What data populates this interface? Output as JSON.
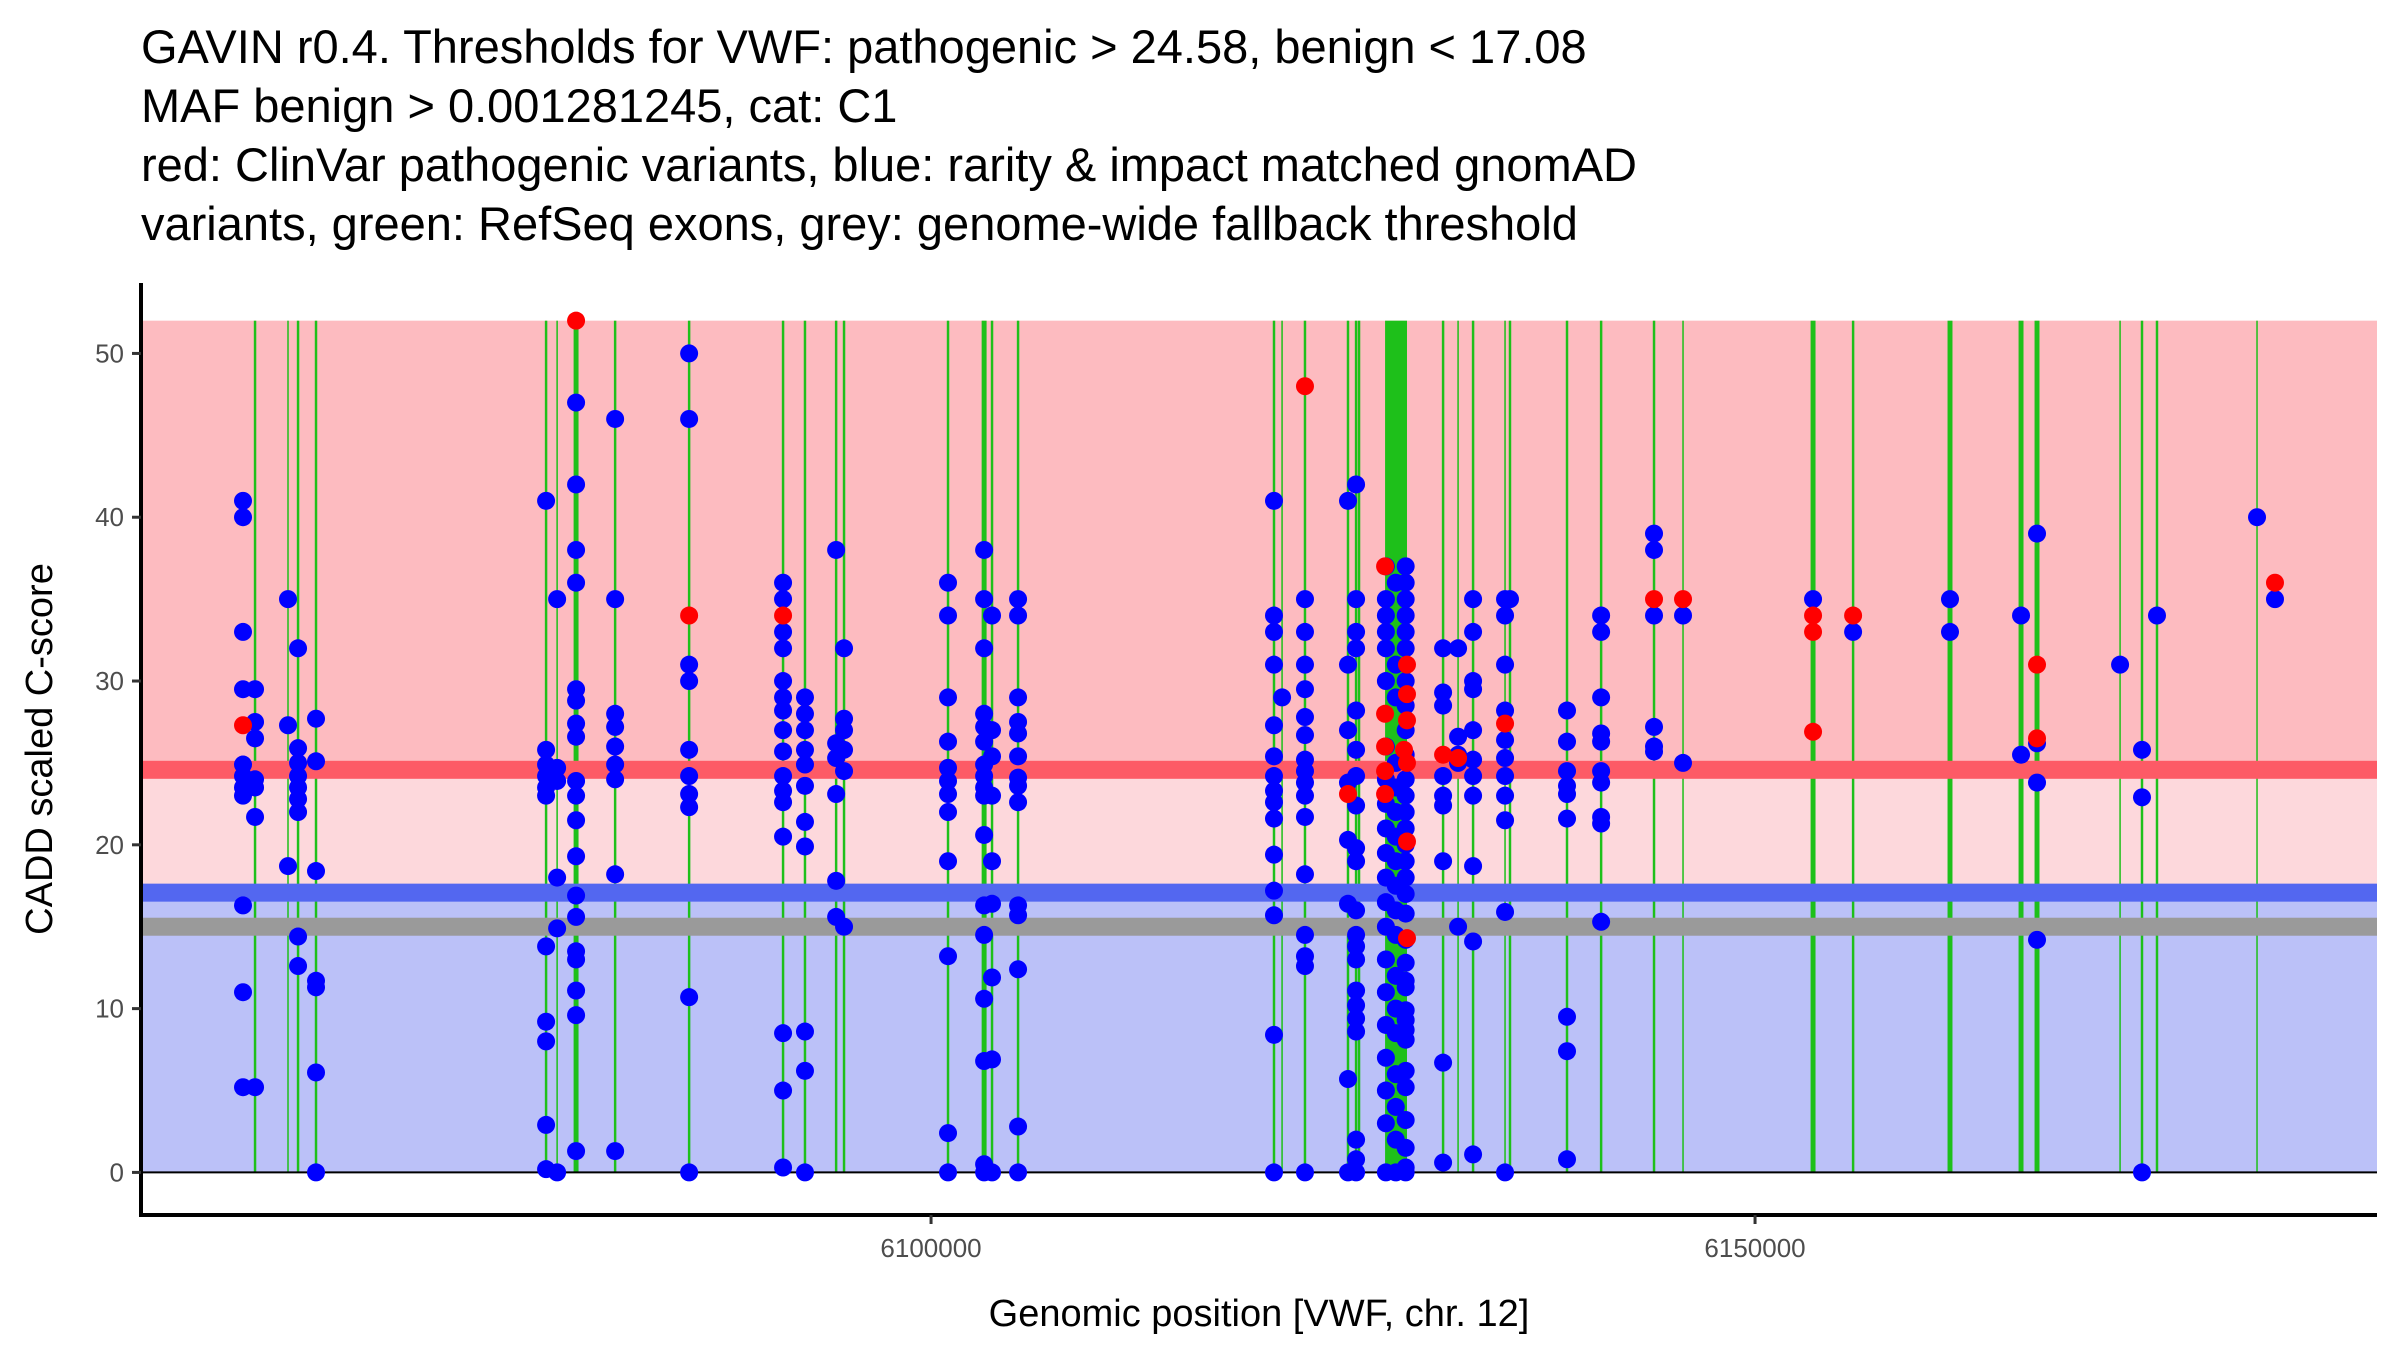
{
  "chart_data": {
    "type": "scatter",
    "title_lines": [
      "GAVIN r0.4. Thresholds for VWF: pathogenic > 24.58, benign < 17.08",
      "MAF benign > 0.001281245, cat: C1",
      "red: ClinVar pathogenic variants, blue: rarity & impact matched gnomAD",
      "variants, green: RefSeq exons, grey: genome-wide fallback threshold"
    ],
    "xlabel": "Genomic position [VWF, chr. 12]",
    "ylabel": "CADD scaled C-score",
    "xlim": [
      6052060,
      6187740
    ],
    "ylim": [
      -2.6,
      54.3
    ],
    "x_ticks": [
      6100000,
      6150000
    ],
    "x_tick_labels": [
      "6100000",
      "6150000"
    ],
    "y_ticks": [
      0,
      10,
      20,
      30,
      40,
      50
    ],
    "y_tick_labels": [
      "0",
      "10",
      "20",
      "30",
      "40",
      "50"
    ],
    "grid": false,
    "legend": "none",
    "thresholds": {
      "pathogenic": 24.58,
      "benign": 17.08,
      "genome_wide_fallback": 15.0,
      "maf_benign": 0.001281245,
      "category": "C1"
    },
    "regions": [
      {
        "name": "pathogenic-region",
        "from": 24.58,
        "to": 52,
        "color": "#FDBBC0"
      },
      {
        "name": "intermediate-region",
        "from": 17.08,
        "to": 24.58,
        "color": "#FDD8DC"
      },
      {
        "name": "benign-region",
        "from": 0,
        "to": 17.08,
        "color": "#BBC1F8"
      }
    ],
    "threshold_lines": [
      {
        "name": "pathogenic-threshold-line",
        "value": 24.58,
        "color": "#FD5A66"
      },
      {
        "name": "benign-threshold-line",
        "value": 17.08,
        "color": "#5367F0"
      },
      {
        "name": "fallback-threshold-line",
        "value": 15.0,
        "color": "#9A9A9A"
      }
    ],
    "colors": {
      "clinvar_pathogenic": "#FF0000",
      "gnomad_matched": "#0000FF",
      "refseq_exon": "#1EC01A",
      "axis": "#000000"
    },
    "exons": [
      [
        6058905,
        6059055
      ],
      [
        6060950,
        6061010
      ],
      [
        6061515,
        6061665
      ],
      [
        6062605,
        6062755
      ],
      [
        6076565,
        6076715
      ],
      [
        6077280,
        6077340
      ],
      [
        6078310,
        6078610
      ],
      [
        6080755,
        6080905
      ],
      [
        6085245,
        6085395
      ],
      [
        6090945,
        6091095
      ],
      [
        6092275,
        6092425
      ],
      [
        6094165,
        6094315
      ],
      [
        6094645,
        6094795
      ],
      [
        6100955,
        6101105
      ],
      [
        6103070,
        6103370
      ],
      [
        6103625,
        6103775
      ],
      [
        6105205,
        6105355
      ],
      [
        6120735,
        6120885
      ],
      [
        6121270,
        6121330
      ],
      [
        6122615,
        6122765
      ],
      [
        6125225,
        6125375
      ],
      [
        6125715,
        6125865
      ],
      [
        6125895,
        6126045
      ],
      [
        6127550,
        6128880
      ],
      [
        6130995,
        6131145
      ],
      [
        6131950,
        6132010
      ],
      [
        6132815,
        6132965
      ],
      [
        6134800,
        6134860
      ],
      [
        6135055,
        6135205
      ],
      [
        6138515,
        6138665
      ],
      [
        6140585,
        6140735
      ],
      [
        6143795,
        6143945
      ],
      [
        6145600,
        6145660
      ],
      [
        6153370,
        6153670
      ],
      [
        6155875,
        6156025
      ],
      [
        6161680,
        6161980
      ],
      [
        6165990,
        6166290
      ],
      [
        6166960,
        6167260
      ],
      [
        6172120,
        6172180
      ],
      [
        6173405,
        6173555
      ],
      [
        6174315,
        6174465
      ],
      [
        6180430,
        6180490
      ]
    ],
    "series": [
      {
        "name": "gnomAD matched variants",
        "color": "#0000FF",
        "columns": [
          {
            "pos": 6058250,
            "scores": [
              41,
              40,
              33,
              29.5,
              24.9,
              24.2,
              23.5,
              23.0,
              16.3,
              11.0,
              5.2
            ]
          },
          {
            "pos": 6058980,
            "scores": [
              29.5,
              27.5,
              26.5,
              24.0,
              23.5,
              21.7,
              5.2
            ]
          },
          {
            "pos": 6060980,
            "scores": [
              35,
              27.3,
              18.7
            ]
          },
          {
            "pos": 6061590,
            "scores": [
              32,
              25.9,
              25.0,
              24.2,
              23.5,
              22.8,
              22.0,
              14.4,
              12.6
            ]
          },
          {
            "pos": 6062680,
            "scores": [
              27.7,
              25.1,
              18.4,
              11.7,
              11.3,
              6.1,
              0
            ]
          },
          {
            "pos": 6076640,
            "scores": [
              41,
              25.8,
              24.9,
              24.2,
              23.5,
              23.0,
              13.8,
              9.2,
              8.0,
              2.9,
              0.2
            ]
          },
          {
            "pos": 6077310,
            "scores": [
              35,
              24.7,
              23.9,
              18.0,
              14.9,
              0
            ]
          },
          {
            "pos": 6078460,
            "scores": [
              47,
              42,
              38,
              36,
              29.5,
              28.8,
              27.4,
              26.6,
              23.9,
              23.0,
              21.5,
              19.3,
              16.9,
              15.6,
              13.5,
              13.0,
              11.1,
              9.6,
              1.3
            ]
          },
          {
            "pos": 6080830,
            "scores": [
              46,
              35,
              28,
              27.2,
              26,
              24.9,
              24,
              18.2,
              1.3
            ]
          },
          {
            "pos": 6085320,
            "scores": [
              50,
              46,
              31,
              30,
              25.8,
              24.2,
              23.1,
              22.3,
              10.7,
              0
            ]
          },
          {
            "pos": 6091020,
            "scores": [
              36,
              35,
              33,
              32,
              30,
              29,
              28.2,
              27,
              25.7,
              24.2,
              23.3,
              22.6,
              20.5,
              8.5,
              5.0,
              0.3
            ]
          },
          {
            "pos": 6092350,
            "scores": [
              29,
              28,
              27,
              25.8,
              24.9,
              23.6,
              21.4,
              19.9,
              8.6,
              6.2,
              0
            ]
          },
          {
            "pos": 6094240,
            "scores": [
              38,
              26.2,
              25.3,
              23.1,
              17.8,
              15.6
            ]
          },
          {
            "pos": 6094720,
            "scores": [
              32,
              27.7,
              27,
              25.8,
              24.5,
              15.0
            ]
          },
          {
            "pos": 6101030,
            "scores": [
              36,
              34,
              29,
              26.3,
              24.7,
              23.9,
              23.1,
              22,
              19,
              13.2,
              2.4,
              0
            ]
          },
          {
            "pos": 6103220,
            "scores": [
              38,
              35,
              32,
              28,
              27.2,
              26.3,
              24.9,
              24.2,
              23.5,
              23,
              20.6,
              16.3,
              14.5,
              10.6,
              6.8,
              0.5,
              0
            ]
          },
          {
            "pos": 6103700,
            "scores": [
              34,
              27,
              25.4,
              23,
              19,
              16.4,
              11.9,
              6.9,
              0
            ]
          },
          {
            "pos": 6105280,
            "scores": [
              35,
              34,
              29,
              27.5,
              26.8,
              25.4,
              24.1,
              23.6,
              22.6,
              16.3,
              15.7,
              12.4,
              2.8,
              0
            ]
          },
          {
            "pos": 6120810,
            "scores": [
              41,
              34,
              33,
              31,
              27.3,
              25.4,
              24.2,
              23.3,
              22.6,
              21.6,
              19.4,
              17.2,
              15.7,
              8.4,
              0
            ]
          },
          {
            "pos": 6121300,
            "scores": [
              29
            ]
          },
          {
            "pos": 6122690,
            "scores": [
              35,
              33,
              31,
              29.5,
              27.8,
              26.7,
              25.2,
              24.5,
              23.8,
              23,
              21.7,
              18.2,
              14.5,
              13.2,
              12.6,
              0
            ]
          },
          {
            "pos": 6125300,
            "scores": [
              41,
              31,
              27,
              23.8,
              20.3,
              16.4,
              5.7,
              0
            ]
          },
          {
            "pos": 6125790,
            "scores": [
              42,
              35,
              33,
              32,
              28.2,
              25.8,
              24.2,
              22.4,
              19.8,
              19,
              16,
              14.5,
              13.8,
              13,
              11.1,
              10.2,
              9.4,
              8.6,
              2,
              0.8,
              0
            ]
          },
          {
            "pos": 6127600,
            "scores": [
              37,
              35,
              34,
              33,
              32,
              30,
              26,
              24,
              22.5,
              21,
              19.5,
              18,
              16.5,
              15,
              13,
              11,
              9,
              7,
              5,
              3,
              0
            ]
          },
          {
            "pos": 6128200,
            "scores": [
              36,
              31,
              29,
              25,
              23.5,
              22,
              20.5,
              19,
              17.5,
              16,
              14.5,
              12,
              10,
              8.5,
              6,
              4,
              2,
              0
            ]
          },
          {
            "pos": 6128800,
            "scores": [
              37,
              36,
              35,
              34,
              33,
              32,
              30,
              28.5,
              27,
              25.5,
              24,
              23,
              22,
              21,
              20,
              19,
              18,
              17,
              15.8,
              14.2,
              12.8,
              11.7,
              11.3,
              9.9,
              9.3,
              8.7,
              8.1,
              6.2,
              5.2,
              3.2,
              1.5,
              0.3,
              0
            ]
          },
          {
            "pos": 6131070,
            "scores": [
              32,
              29.3,
              28.5,
              24.2,
              23,
              22.4,
              19,
              6.7,
              0.6
            ]
          },
          {
            "pos": 6131980,
            "scores": [
              32,
              26.6,
              25.5,
              25.0,
              15.0
            ]
          },
          {
            "pos": 6132890,
            "scores": [
              35,
              33,
              30,
              29.5,
              27,
              25.2,
              24.2,
              23,
              18.7,
              14.1,
              1.1
            ]
          },
          {
            "pos": 6134830,
            "scores": [
              35,
              34,
              31,
              28.2,
              26.4,
              25.3,
              24.2,
              23,
              21.5,
              15.9,
              0
            ]
          },
          {
            "pos": 6135130,
            "scores": [
              35
            ]
          },
          {
            "pos": 6138590,
            "scores": [
              28.2,
              26.3,
              24.5,
              23.6,
              23.1,
              21.6,
              9.5,
              7.4,
              0.8
            ]
          },
          {
            "pos": 6140660,
            "scores": [
              34,
              33,
              29,
              26.8,
              26.3,
              24.5,
              23.8,
              21.7,
              21.3,
              15.3
            ]
          },
          {
            "pos": 6143870,
            "scores": [
              39,
              38,
              34,
              27.2,
              26,
              25.7
            ]
          },
          {
            "pos": 6145630,
            "scores": [
              34,
              25
            ]
          },
          {
            "pos": 6153520,
            "scores": [
              35
            ]
          },
          {
            "pos": 6155950,
            "scores": [
              33
            ]
          },
          {
            "pos": 6161830,
            "scores": [
              35,
              33
            ]
          },
          {
            "pos": 6166140,
            "scores": [
              34,
              25.5
            ]
          },
          {
            "pos": 6167110,
            "scores": [
              39,
              26.2,
              23.8,
              14.2
            ]
          },
          {
            "pos": 6172150,
            "scores": [
              31
            ]
          },
          {
            "pos": 6173480,
            "scores": [
              25.8,
              22.9,
              0
            ]
          },
          {
            "pos": 6174390,
            "scores": [
              34
            ]
          },
          {
            "pos": 6180460,
            "scores": [
              40
            ]
          },
          {
            "pos": 6181550,
            "scores": [
              35
            ]
          }
        ]
      },
      {
        "name": "ClinVar pathogenic variants",
        "color": "#FF0000",
        "columns": [
          {
            "pos": 6058250,
            "scores": [
              27.3
            ]
          },
          {
            "pos": 6078460,
            "scores": [
              52
            ]
          },
          {
            "pos": 6085320,
            "scores": [
              34
            ]
          },
          {
            "pos": 6091020,
            "scores": [
              34
            ]
          },
          {
            "pos": 6122690,
            "scores": [
              48
            ]
          },
          {
            "pos": 6125300,
            "scores": [
              23.1
            ]
          },
          {
            "pos": 6127550,
            "scores": [
              37,
              28,
              26,
              24.5,
              23.1
            ]
          },
          {
            "pos": 6128700,
            "scores": [
              25.8
            ]
          },
          {
            "pos": 6128880,
            "scores": [
              31,
              29.2,
              27.6,
              25,
              20.2,
              14.3
            ]
          },
          {
            "pos": 6131070,
            "scores": [
              25.5
            ]
          },
          {
            "pos": 6131980,
            "scores": [
              25.3
            ]
          },
          {
            "pos": 6134830,
            "scores": [
              27.4
            ]
          },
          {
            "pos": 6143870,
            "scores": [
              35
            ]
          },
          {
            "pos": 6145630,
            "scores": [
              35
            ]
          },
          {
            "pos": 6153520,
            "scores": [
              34,
              33,
              26.9
            ]
          },
          {
            "pos": 6155950,
            "scores": [
              34
            ]
          },
          {
            "pos": 6167110,
            "scores": [
              31,
              26.5
            ]
          },
          {
            "pos": 6181550,
            "scores": [
              36
            ]
          }
        ]
      }
    ]
  }
}
